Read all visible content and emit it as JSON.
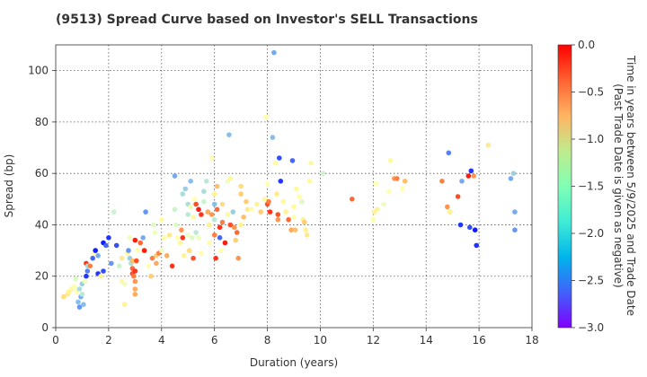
{
  "chart_data": {
    "type": "scatter",
    "title": "(9513)   Spread Curve based on Investor's SELL Transactions",
    "xlabel": "Duration (years)",
    "ylabel": "Spread (bp)",
    "xlim": [
      0,
      18
    ],
    "ylim": [
      0,
      110
    ],
    "xticks": [
      0,
      2,
      4,
      6,
      8,
      10,
      12,
      14,
      16,
      18
    ],
    "yticks": [
      0,
      20,
      40,
      60,
      80,
      100
    ],
    "grid": true,
    "colorbar": {
      "label_line1": "Time in years between 5/9/2025 and Trade Date",
      "label_line2": "(Past Trade Date is given as negative)",
      "range": [
        -3.0,
        0.0
      ],
      "ticks": [
        0.0,
        -0.5,
        -1.0,
        -1.5,
        -2.0,
        -2.5,
        -3.0
      ],
      "colormap": "rainbow"
    },
    "points": [
      [
        0.3,
        12,
        -1.0
      ],
      [
        0.45,
        13,
        -1.1
      ],
      [
        0.5,
        14,
        -1.2
      ],
      [
        0.6,
        15,
        -1.3
      ],
      [
        0.7,
        16,
        -1.5
      ],
      [
        0.75,
        19,
        -1.7
      ],
      [
        0.8,
        14,
        -1.4
      ],
      [
        0.85,
        10,
        -2.2
      ],
      [
        0.9,
        8,
        -2.4
      ],
      [
        0.9,
        15,
        -2.0
      ],
      [
        0.95,
        12,
        -2.3
      ],
      [
        1.0,
        17,
        -2.1
      ],
      [
        1.0,
        13,
        -1.9
      ],
      [
        1.05,
        9,
        -2.2
      ],
      [
        1.1,
        18,
        -1.6
      ],
      [
        1.15,
        20,
        -2.8
      ],
      [
        1.15,
        25,
        -0.2
      ],
      [
        1.2,
        22,
        -2.5
      ],
      [
        1.2,
        24,
        -2.0
      ],
      [
        1.3,
        24,
        -0.5
      ],
      [
        1.4,
        27,
        -2.6
      ],
      [
        1.45,
        29,
        -1.5
      ],
      [
        1.5,
        30,
        -2.9
      ],
      [
        1.6,
        28,
        -2.3
      ],
      [
        1.6,
        21,
        -2.8
      ],
      [
        1.7,
        20,
        -1.2
      ],
      [
        1.8,
        22,
        -2.7
      ],
      [
        1.8,
        33,
        -2.9
      ],
      [
        1.9,
        32,
        -2.6
      ],
      [
        2.0,
        35,
        -2.8
      ],
      [
        2.1,
        25,
        -2.4
      ],
      [
        2.2,
        45,
        -1.8
      ],
      [
        2.3,
        32,
        -2.7
      ],
      [
        2.4,
        24,
        -1.8
      ],
      [
        2.5,
        27,
        -1.1
      ],
      [
        2.5,
        18,
        -1.3
      ],
      [
        2.6,
        17,
        -1.6
      ],
      [
        2.6,
        9,
        -1.2
      ],
      [
        2.7,
        29,
        -1.3
      ],
      [
        2.75,
        30,
        -2.4
      ],
      [
        2.8,
        35,
        -1.6
      ],
      [
        2.8,
        27,
        -2.1
      ],
      [
        2.85,
        25,
        -2.0
      ],
      [
        2.9,
        26,
        -0.8
      ],
      [
        2.9,
        23,
        -0.4
      ],
      [
        2.9,
        21,
        -0.3
      ],
      [
        2.95,
        20,
        -0.5
      ],
      [
        3.0,
        18,
        -0.6
      ],
      [
        3.0,
        15,
        -0.7
      ],
      [
        3.0,
        13,
        -0.7
      ],
      [
        3.0,
        22,
        -0.2
      ],
      [
        3.0,
        34,
        -0.1
      ],
      [
        3.05,
        26,
        -0.3
      ],
      [
        3.1,
        30,
        -1.4
      ],
      [
        3.2,
        33,
        -0.4
      ],
      [
        3.3,
        35,
        -2.3
      ],
      [
        3.35,
        30,
        -0.1
      ],
      [
        3.4,
        45,
        -2.4
      ],
      [
        3.5,
        24,
        -1.5
      ],
      [
        3.6,
        20,
        -0.9
      ],
      [
        3.65,
        27,
        -0.5
      ],
      [
        3.7,
        40,
        -1.7
      ],
      [
        3.75,
        37,
        -1.6
      ],
      [
        3.8,
        25,
        -0.7
      ],
      [
        3.8,
        28,
        -0.9
      ],
      [
        3.9,
        29,
        -0.5
      ],
      [
        4.0,
        42,
        -1.3
      ],
      [
        4.0,
        30,
        -1.6
      ],
      [
        4.1,
        35,
        -1.4
      ],
      [
        4.2,
        28,
        -0.7
      ],
      [
        4.3,
        36,
        -1.1
      ],
      [
        4.4,
        24,
        -0.2
      ],
      [
        4.5,
        59,
        -2.3
      ],
      [
        4.5,
        46,
        -1.8
      ],
      [
        4.55,
        40,
        -1.7
      ],
      [
        4.6,
        35,
        -1.5
      ],
      [
        4.7,
        33,
        -1.3
      ],
      [
        4.75,
        38,
        -0.6
      ],
      [
        4.8,
        52,
        -2.0
      ],
      [
        4.8,
        35,
        -0.2
      ],
      [
        4.85,
        28,
        -1.2
      ],
      [
        4.9,
        54,
        -2.1
      ],
      [
        5.0,
        48,
        -2.0
      ],
      [
        5.0,
        44,
        -1.9
      ],
      [
        5.0,
        36,
        -1.6
      ],
      [
        5.05,
        30,
        -1.0
      ],
      [
        5.1,
        57,
        -2.2
      ],
      [
        5.1,
        47,
        -1.6
      ],
      [
        5.15,
        35,
        -1.7
      ],
      [
        5.2,
        43,
        -1.3
      ],
      [
        5.2,
        27,
        -0.3
      ],
      [
        5.25,
        50,
        -1.5
      ],
      [
        5.3,
        48,
        -0.3
      ],
      [
        5.3,
        37,
        -1.9
      ],
      [
        5.4,
        46,
        -0.1
      ],
      [
        5.4,
        35,
        -1.6
      ],
      [
        5.5,
        44,
        -0.2
      ],
      [
        5.5,
        29,
        -1.4
      ],
      [
        5.6,
        53,
        -2.0
      ],
      [
        5.6,
        49,
        -1.8
      ],
      [
        5.7,
        57,
        -1.9
      ],
      [
        5.75,
        45,
        -0.7
      ],
      [
        5.8,
        40,
        -1.2
      ],
      [
        5.8,
        33,
        -1.5
      ],
      [
        5.9,
        66,
        -1.4
      ],
      [
        5.9,
        44,
        -0.6
      ],
      [
        6.0,
        52,
        -1.2
      ],
      [
        6.0,
        48,
        -2.2
      ],
      [
        6.0,
        42,
        -1.9
      ],
      [
        6.0,
        36,
        -0.5
      ],
      [
        6.05,
        27,
        -0.2
      ],
      [
        6.1,
        55,
        -0.8
      ],
      [
        6.1,
        46,
        -0.4
      ],
      [
        6.2,
        35,
        -2.6
      ],
      [
        6.2,
        39,
        -0.2
      ],
      [
        6.25,
        30,
        -1.5
      ],
      [
        6.3,
        41,
        -0.5
      ],
      [
        6.3,
        48,
        -1.0
      ],
      [
        6.4,
        33,
        -0.1
      ],
      [
        6.5,
        57,
        -1.6
      ],
      [
        6.5,
        44,
        -1.3
      ],
      [
        6.55,
        75,
        -2.2
      ],
      [
        6.6,
        40,
        -0.3
      ],
      [
        6.6,
        58,
        -1.3
      ],
      [
        6.7,
        45,
        -2.1
      ],
      [
        6.75,
        39,
        -0.6
      ],
      [
        6.8,
        34,
        -0.9
      ],
      [
        6.85,
        37,
        -0.4
      ],
      [
        6.9,
        27,
        -0.6
      ],
      [
        7.0,
        55,
        -1.0
      ],
      [
        7.0,
        52,
        -0.9
      ],
      [
        7.0,
        40,
        -1.2
      ],
      [
        7.1,
        43,
        -0.8
      ],
      [
        7.2,
        49,
        -0.9
      ],
      [
        7.25,
        46,
        -1.1
      ],
      [
        7.4,
        46,
        -1.4
      ],
      [
        7.6,
        48,
        -1.2
      ],
      [
        7.75,
        45,
        -0.9
      ],
      [
        7.9,
        50,
        -1.3
      ],
      [
        7.95,
        82,
        -1.4
      ],
      [
        8.0,
        56,
        -1.5
      ],
      [
        8.0,
        48,
        -0.3
      ],
      [
        8.05,
        49,
        -0.5
      ],
      [
        8.1,
        45,
        -0.2
      ],
      [
        8.2,
        74,
        -2.2
      ],
      [
        8.25,
        107,
        -2.3
      ],
      [
        8.3,
        64,
        -1.4
      ],
      [
        8.35,
        52,
        -1.1
      ],
      [
        8.4,
        44,
        -0.3
      ],
      [
        8.4,
        42,
        -0.6
      ],
      [
        8.45,
        66,
        -2.7
      ],
      [
        8.5,
        57,
        -2.8
      ],
      [
        8.6,
        49,
        -1.3
      ],
      [
        8.7,
        45,
        -1.2
      ],
      [
        8.8,
        42,
        -0.4
      ],
      [
        8.9,
        38,
        -0.7
      ],
      [
        8.95,
        65,
        -2.6
      ],
      [
        9.0,
        47,
        -1.3
      ],
      [
        9.0,
        43,
        -1.5
      ],
      [
        9.05,
        38,
        -0.8
      ],
      [
        9.1,
        54,
        -1.3
      ],
      [
        9.2,
        51,
        -1.4
      ],
      [
        9.3,
        49,
        -1.7
      ],
      [
        9.35,
        42,
        -1.2
      ],
      [
        9.4,
        41,
        -0.9
      ],
      [
        9.45,
        38,
        -1.2
      ],
      [
        9.5,
        36,
        -1.1
      ],
      [
        9.6,
        57,
        -1.3
      ],
      [
        9.65,
        64,
        -1.3
      ],
      [
        10.1,
        60,
        -1.8
      ],
      [
        11.2,
        50,
        -0.4
      ],
      [
        12.0,
        42,
        -1.4
      ],
      [
        12.05,
        45,
        -1.2
      ],
      [
        12.1,
        56,
        -1.5
      ],
      [
        12.15,
        46,
        -1.2
      ],
      [
        12.4,
        48,
        -1.6
      ],
      [
        12.6,
        53,
        -1.5
      ],
      [
        12.65,
        65,
        -1.3
      ],
      [
        12.8,
        58,
        -0.6
      ],
      [
        12.9,
        58,
        -0.5
      ],
      [
        13.1,
        54,
        -1.5
      ],
      [
        13.2,
        57,
        -0.8
      ],
      [
        14.6,
        57,
        -0.5
      ],
      [
        14.8,
        47,
        -0.6
      ],
      [
        14.85,
        68,
        -2.5
      ],
      [
        14.9,
        45,
        -1.2
      ],
      [
        15.2,
        51,
        -0.3
      ],
      [
        15.3,
        40,
        -2.8
      ],
      [
        15.35,
        57,
        -2.3
      ],
      [
        15.6,
        59,
        -0.1
      ],
      [
        15.65,
        39,
        -2.7
      ],
      [
        15.7,
        61,
        -2.8
      ],
      [
        15.8,
        59,
        -0.6
      ],
      [
        15.85,
        38,
        -2.9
      ],
      [
        15.9,
        32,
        -2.8
      ],
      [
        16.35,
        71,
        -1.1
      ],
      [
        17.2,
        58,
        -2.3
      ],
      [
        17.3,
        60,
        -2.1
      ],
      [
        17.35,
        45,
        -2.3
      ],
      [
        17.35,
        38,
        -2.4
      ]
    ]
  }
}
